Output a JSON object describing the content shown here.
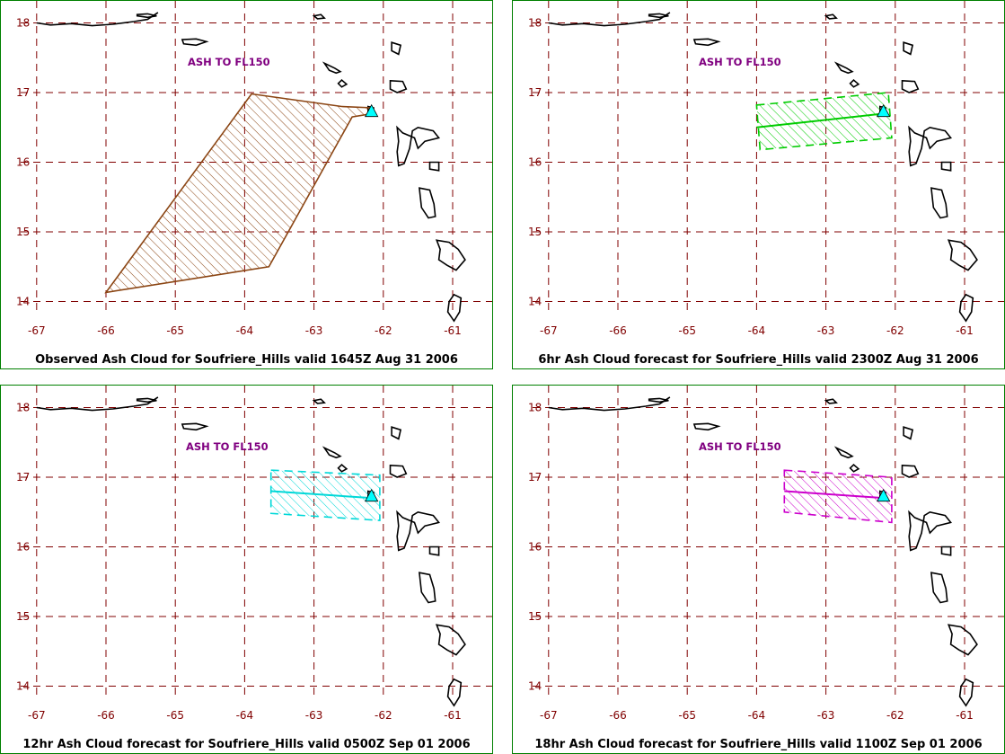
{
  "panels": [
    {
      "caption": "Observed Ash Cloud for Soufriere_Hills valid 1645Z Aug 31 2006",
      "ash_label": "ASH TO FL150",
      "cloud_color": "#8b4513",
      "cloud_style": "solid",
      "cloud_polygon": [
        [
          -63.9,
          16.98
        ],
        [
          -62.6,
          16.8
        ],
        [
          -62.15,
          16.78
        ],
        [
          -62.15,
          16.7
        ],
        [
          -62.45,
          16.65
        ],
        [
          -63.65,
          14.5
        ],
        [
          -66.0,
          14.13
        ]
      ],
      "trajectory": []
    },
    {
      "caption": "6hr Ash Cloud forecast for Soufriere_Hills valid 2300Z Aug 31 2006",
      "ash_label": "ASH TO FL150",
      "cloud_color": "#00cc00",
      "cloud_style": "dashed",
      "cloud_polygon": [
        [
          -64.0,
          16.82
        ],
        [
          -62.1,
          17.0
        ],
        [
          -62.05,
          16.35
        ],
        [
          -63.95,
          16.18
        ]
      ],
      "trajectory": [
        [
          -64.0,
          16.5
        ],
        [
          -62.15,
          16.7
        ]
      ]
    },
    {
      "caption": "12hr Ash Cloud forecast for Soufriere_Hills valid 0500Z Sep 01 2006",
      "ash_label": "ASH TO FL150",
      "cloud_color": "#00d8d8",
      "cloud_style": "dashed",
      "cloud_polygon": [
        [
          -63.62,
          17.1
        ],
        [
          -62.05,
          17.03
        ],
        [
          -62.05,
          16.38
        ],
        [
          -63.62,
          16.48
        ]
      ],
      "trajectory": [
        [
          -63.62,
          16.8
        ],
        [
          -62.15,
          16.7
        ]
      ]
    },
    {
      "caption": "18hr Ash Cloud forecast for Soufriere_Hills valid 1100Z Sep 01 2006",
      "ash_label": "ASH TO FL150",
      "cloud_color": "#cc00cc",
      "cloud_style": "dashed",
      "cloud_polygon": [
        [
          -63.6,
          17.1
        ],
        [
          -62.05,
          17.0
        ],
        [
          -62.05,
          16.35
        ],
        [
          -63.6,
          16.5
        ]
      ],
      "trajectory": [
        [
          -63.6,
          16.8
        ],
        [
          -62.15,
          16.7
        ]
      ]
    }
  ],
  "map": {
    "lon_ticks": [
      "-67",
      "-66",
      "-65",
      "-64",
      "-63",
      "-62",
      "-61"
    ],
    "lat_ticks": [
      "18",
      "17",
      "16",
      "15",
      "14"
    ],
    "lon_range": [
      -67.0,
      -60.6
    ],
    "lat_range": [
      13.7,
      18.1
    ],
    "grid_color": "#800000",
    "volcano": {
      "lon": -62.17,
      "lat": 16.72,
      "color": "#00ffff",
      "icon": "volcano-triangle-icon"
    }
  }
}
